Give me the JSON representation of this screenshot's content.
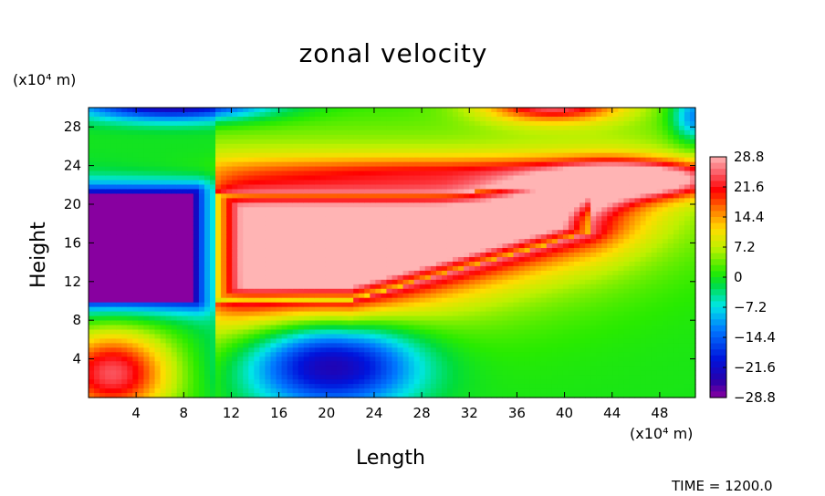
{
  "chart_data": {
    "type": "heatmap",
    "title": "zonal velocity",
    "xlabel": "Length",
    "ylabel": "Height",
    "x_unit": "(x10⁴ m)",
    "y_unit": "(x10⁴ m)",
    "footer": "TIME = 1200.0",
    "xlim": [
      0,
      51
    ],
    "ylim": [
      0,
      30
    ],
    "x_ticks": [
      4,
      8,
      12,
      16,
      20,
      24,
      28,
      32,
      36,
      40,
      44,
      48
    ],
    "y_ticks": [
      4,
      8,
      12,
      16,
      20,
      24,
      28
    ],
    "colorbar": {
      "ticks": [
        "28.8",
        "21.6",
        "14.4",
        "7.2",
        "0",
        "−7.2",
        "−14.4",
        "−21.6",
        "−28.8"
      ],
      "range": [
        -28.8,
        28.8
      ]
    },
    "features": [
      {
        "name": "strong positive jet",
        "value": 28.8,
        "x_range": [
          11,
          41
        ],
        "y_range": [
          10,
          21
        ]
      },
      {
        "name": "strong negative core",
        "value": -28.8,
        "x_range": [
          0,
          9
        ],
        "y_range": [
          10,
          21
        ]
      },
      {
        "name": "negative minimum",
        "value": -25,
        "x": 20.5,
        "y": 3.5
      },
      {
        "name": "positive lower-left",
        "value": 22,
        "x": 2,
        "y": 3
      },
      {
        "name": "positive top",
        "value": 24,
        "x": 39,
        "y": 30
      },
      {
        "name": "negative top",
        "value": -22,
        "x": 7,
        "y": 30
      }
    ]
  }
}
